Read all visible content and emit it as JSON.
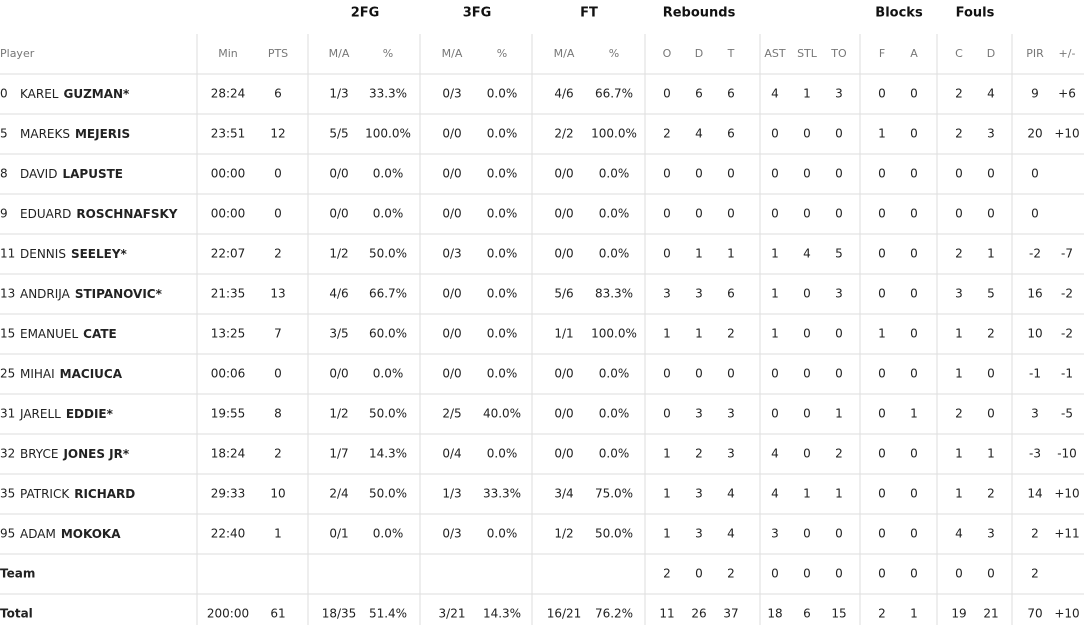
{
  "header": {
    "groups": [
      "2FG",
      "3FG",
      "FT",
      "Rebounds",
      "Blocks",
      "Fouls"
    ],
    "columns": [
      "Player",
      "Min",
      "PTS",
      "M/A",
      "%",
      "M/A",
      "%",
      "M/A",
      "%",
      "O",
      "D",
      "T",
      "AST",
      "STL",
      "TO",
      "F",
      "A",
      "C",
      "D",
      "PIR",
      "+/-"
    ]
  },
  "rows": [
    {
      "number": "0",
      "first_name": "KAREL",
      "last_name": "GUZMAN*",
      "cells": [
        "28:24",
        "6",
        "1/3",
        "33.3%",
        "0/3",
        "0.0%",
        "4/6",
        "66.7%",
        "0",
        "6",
        "6",
        "4",
        "1",
        "3",
        "0",
        "0",
        "2",
        "4",
        "9",
        "+6"
      ]
    },
    {
      "number": "5",
      "first_name": "MAREKS",
      "last_name": "MEJERIS",
      "cells": [
        "23:51",
        "12",
        "5/5",
        "100.0%",
        "0/0",
        "0.0%",
        "2/2",
        "100.0%",
        "2",
        "4",
        "6",
        "0",
        "0",
        "0",
        "1",
        "0",
        "2",
        "3",
        "20",
        "+10"
      ]
    },
    {
      "number": "8",
      "first_name": "DAVID",
      "last_name": "LAPUSTE",
      "cells": [
        "00:00",
        "0",
        "0/0",
        "0.0%",
        "0/0",
        "0.0%",
        "0/0",
        "0.0%",
        "0",
        "0",
        "0",
        "0",
        "0",
        "0",
        "0",
        "0",
        "0",
        "0",
        "0",
        null
      ]
    },
    {
      "number": "9",
      "first_name": "EDUARD",
      "last_name": "ROSCHNAFSKY",
      "cells": [
        "00:00",
        "0",
        "0/0",
        "0.0%",
        "0/0",
        "0.0%",
        "0/0",
        "0.0%",
        "0",
        "0",
        "0",
        "0",
        "0",
        "0",
        "0",
        "0",
        "0",
        "0",
        "0",
        null
      ]
    },
    {
      "number": "11",
      "first_name": "DENNIS",
      "last_name": "SEELEY*",
      "cells": [
        "22:07",
        "2",
        "1/2",
        "50.0%",
        "0/3",
        "0.0%",
        "0/0",
        "0.0%",
        "0",
        "1",
        "1",
        "1",
        "4",
        "5",
        "0",
        "0",
        "2",
        "1",
        "-2",
        "-7"
      ]
    },
    {
      "number": "13",
      "first_name": "ANDRIJA",
      "last_name": "STIPANOVIC*",
      "cells": [
        "21:35",
        "13",
        "4/6",
        "66.7%",
        "0/0",
        "0.0%",
        "5/6",
        "83.3%",
        "3",
        "3",
        "6",
        "1",
        "0",
        "3",
        "0",
        "0",
        "3",
        "5",
        "16",
        "-2"
      ]
    },
    {
      "number": "15",
      "first_name": "EMANUEL",
      "last_name": "CATE",
      "cells": [
        "13:25",
        "7",
        "3/5",
        "60.0%",
        "0/0",
        "0.0%",
        "1/1",
        "100.0%",
        "1",
        "1",
        "2",
        "1",
        "0",
        "0",
        "1",
        "0",
        "1",
        "2",
        "10",
        "-2"
      ]
    },
    {
      "number": "25",
      "first_name": "MIHAI",
      "last_name": "MACIUCA",
      "cells": [
        "00:06",
        "0",
        "0/0",
        "0.0%",
        "0/0",
        "0.0%",
        "0/0",
        "0.0%",
        "0",
        "0",
        "0",
        "0",
        "0",
        "0",
        "0",
        "0",
        "1",
        "0",
        "-1",
        "-1"
      ]
    },
    {
      "number": "31",
      "first_name": "JARELL",
      "last_name": "EDDIE*",
      "cells": [
        "19:55",
        "8",
        "1/2",
        "50.0%",
        "2/5",
        "40.0%",
        "0/0",
        "0.0%",
        "0",
        "3",
        "3",
        "0",
        "0",
        "1",
        "0",
        "1",
        "2",
        "0",
        "3",
        "-5"
      ]
    },
    {
      "number": "32",
      "first_name": "BRYCE",
      "last_name": "JONES JR*",
      "cells": [
        "18:24",
        "2",
        "1/7",
        "14.3%",
        "0/4",
        "0.0%",
        "0/0",
        "0.0%",
        "1",
        "2",
        "3",
        "4",
        "0",
        "2",
        "0",
        "0",
        "1",
        "1",
        "-3",
        "-10"
      ]
    },
    {
      "number": "35",
      "first_name": "PATRICK",
      "last_name": "RICHARD",
      "cells": [
        "29:33",
        "10",
        "2/4",
        "50.0%",
        "1/3",
        "33.3%",
        "3/4",
        "75.0%",
        "1",
        "3",
        "4",
        "4",
        "1",
        "1",
        "0",
        "0",
        "1",
        "2",
        "14",
        "+10"
      ]
    },
    {
      "number": "95",
      "first_name": "ADAM",
      "last_name": "MOKOKA",
      "cells": [
        "22:40",
        "1",
        "0/1",
        "0.0%",
        "0/3",
        "0.0%",
        "1/2",
        "50.0%",
        "1",
        "3",
        "4",
        "3",
        "0",
        "0",
        "0",
        "0",
        "4",
        "3",
        "2",
        "+11"
      ]
    }
  ],
  "team": {
    "label": "Team",
    "cells": [
      null,
      null,
      null,
      null,
      null,
      null,
      null,
      null,
      "2",
      "0",
      "2",
      "0",
      "0",
      "0",
      "0",
      "0",
      "0",
      "0",
      "2",
      null
    ]
  },
  "total": {
    "label": "Total",
    "cells": [
      "200:00",
      "61",
      "18/35",
      "51.4%",
      "3/21",
      "14.3%",
      "16/21",
      "76.2%",
      "11",
      "26",
      "37",
      "18",
      "6",
      "15",
      "2",
      "1",
      "19",
      "21",
      "70",
      "+10"
    ]
  }
}
